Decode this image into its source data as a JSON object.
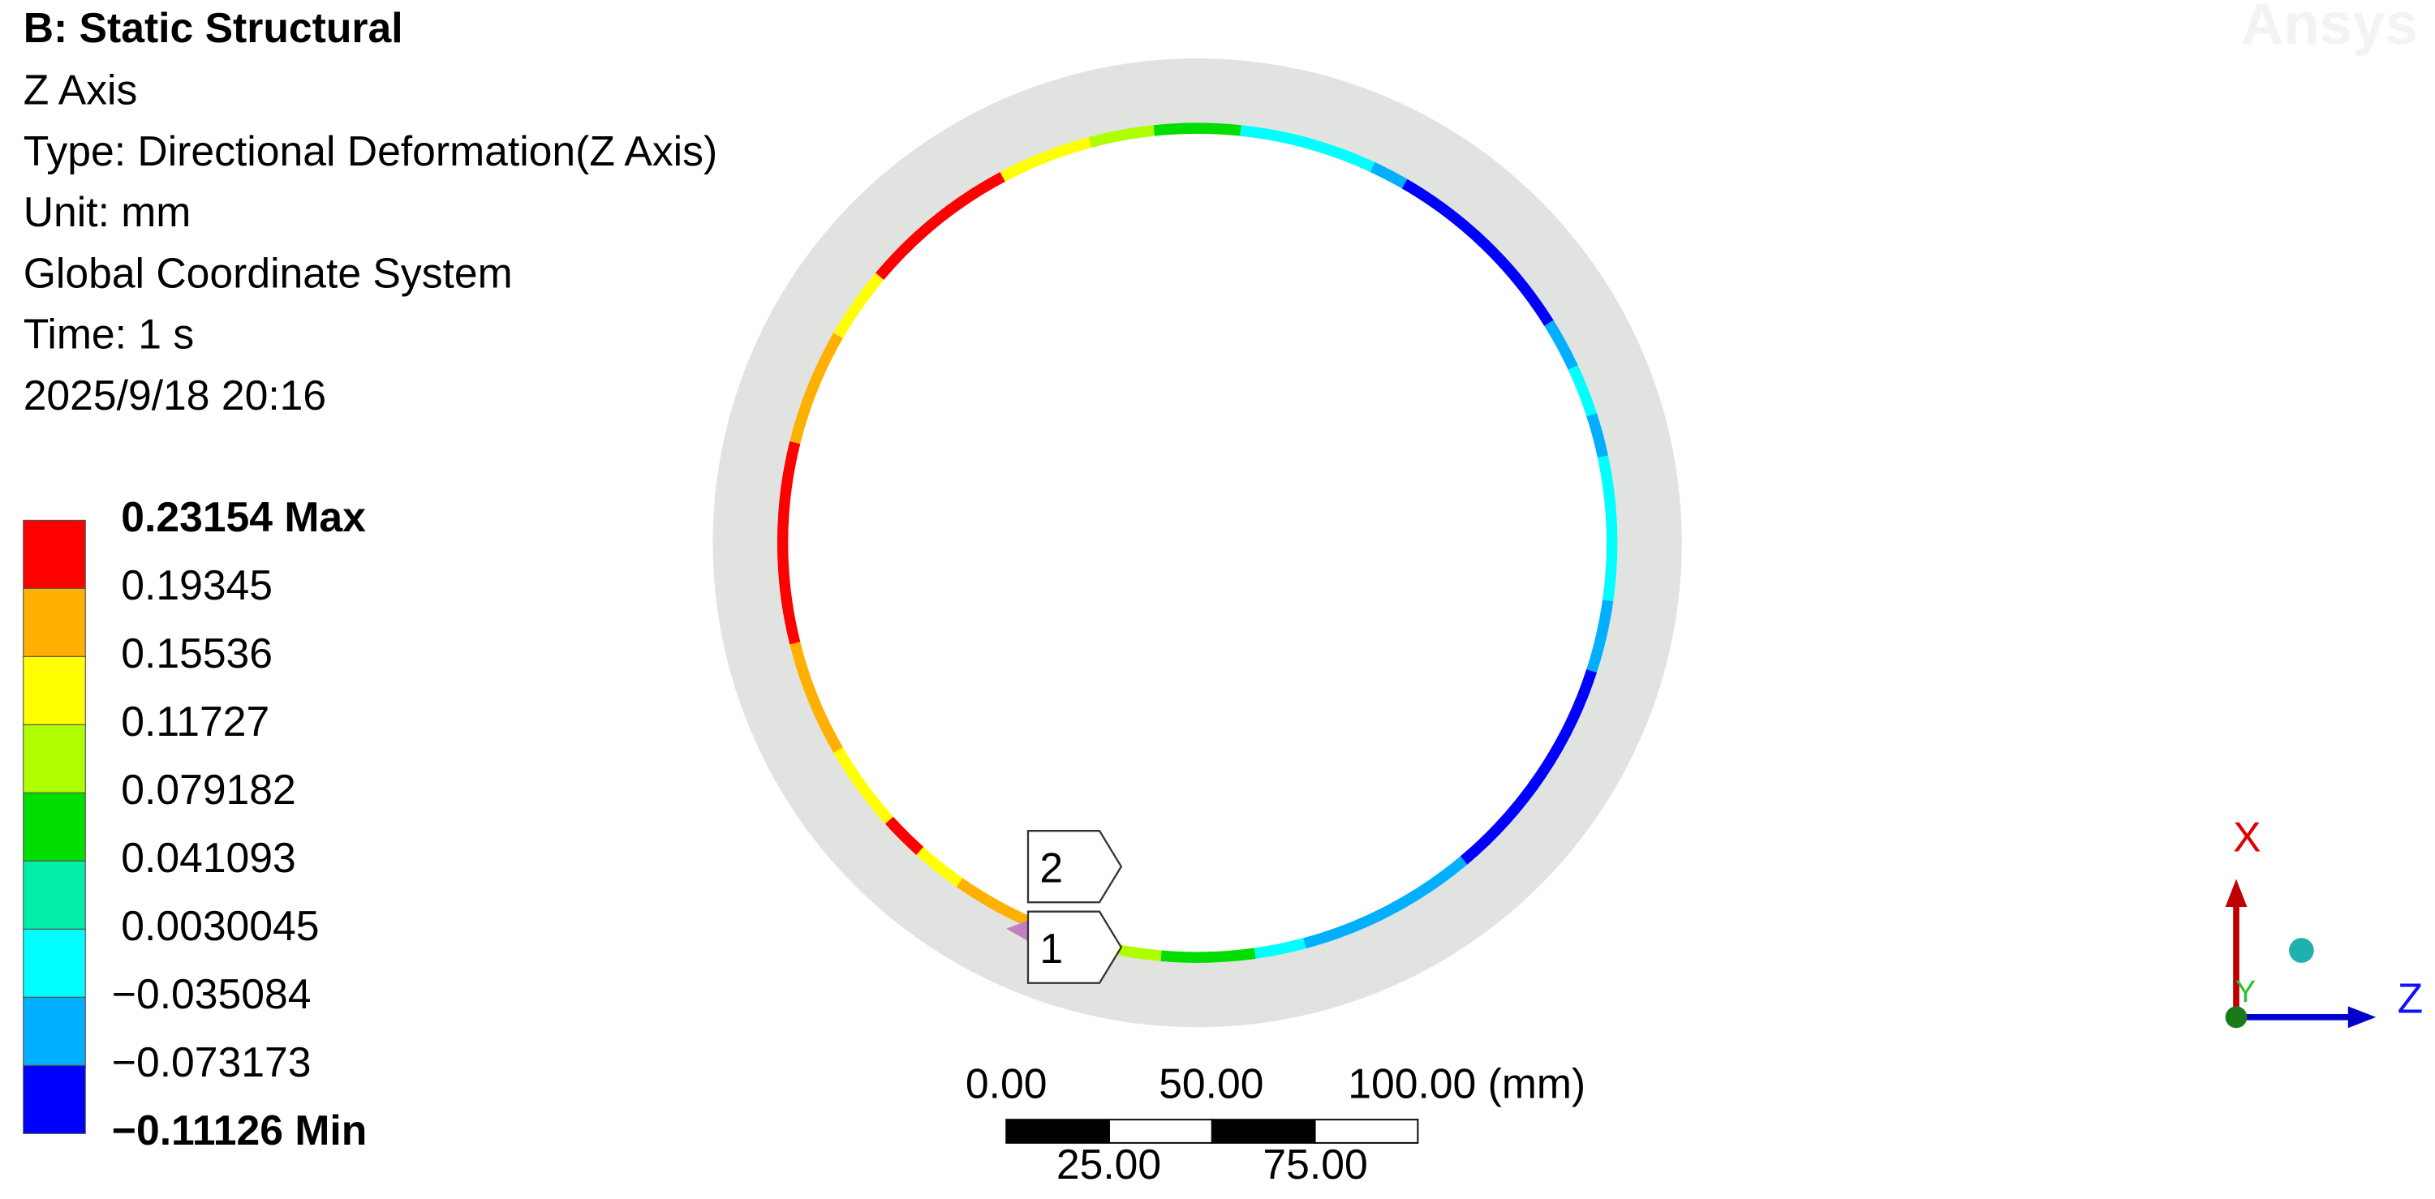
{
  "header": {
    "title": "B: Static Structural",
    "lines": [
      "Z Axis",
      "Type: Directional Deformation(Z Axis)",
      "Unit: mm",
      "Global Coordinate System",
      "Time: 1 s",
      "2025/9/18 20:16"
    ]
  },
  "legend": {
    "labels": [
      "0.23154 Max",
      "0.19345",
      "0.15536",
      "0.11727",
      "0.079182",
      "0.041093",
      "0.0030045",
      "−0.035084",
      "−0.073173",
      "−0.11126 Min"
    ],
    "colors": [
      "#ff0000",
      "#ffb000",
      "#ffff00",
      "#b0ff00",
      "#00dd00",
      "#00eea8",
      "#00ffff",
      "#00b0ff",
      "#0000ff"
    ]
  },
  "probes": [
    "2",
    "1"
  ],
  "scale_bar": {
    "top_labels": [
      "0.00",
      "50.00",
      "100.00 (mm)"
    ],
    "bottom_labels": [
      "25.00",
      "75.00"
    ]
  },
  "triad": {
    "x": "X",
    "y": "Y",
    "z": "Z"
  },
  "watermark": "Ansys"
}
